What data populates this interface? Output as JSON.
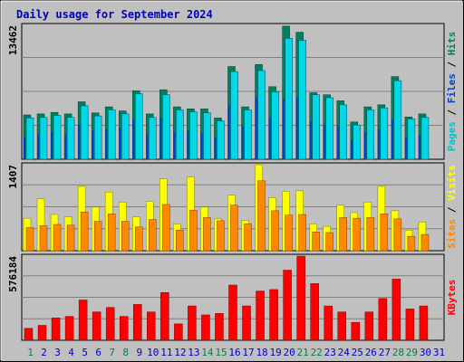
{
  "title": "Daily usage for September 2024",
  "colors": {
    "frame_bg": "#c0c0c0",
    "plot_bg": "#c0c0c0",
    "title": "#0000c0",
    "grid": "#808080",
    "hits_front": "#00d8e8",
    "hits_back": "#008060",
    "files": "#0040c0",
    "pages": "#00c0d0",
    "visits": "#ffff00",
    "sites": "#ff8800",
    "kbytes": "#ff0000",
    "weekend_day": "#008040",
    "weekday": "#0000c0"
  },
  "chart_data": [
    {
      "type": "bar",
      "name": "hits-files-pages",
      "ymax_label": "13462",
      "ylim": [
        0,
        13462
      ],
      "side_labels": [
        "Pages",
        "Files",
        "Hits"
      ],
      "categories": [
        "1",
        "2",
        "3",
        "4",
        "5",
        "6",
        "7",
        "8",
        "9",
        "10",
        "11",
        "12",
        "13",
        "14",
        "15",
        "16",
        "17",
        "18",
        "19",
        "20",
        "21",
        "22",
        "23",
        "24",
        "25",
        "26",
        "27",
        "28",
        "29",
        "30",
        "31"
      ],
      "series": [
        {
          "name": "Hits",
          "values": [
            4400,
            4500,
            4650,
            4500,
            5700,
            4600,
            5200,
            4800,
            6800,
            4500,
            6900,
            5200,
            5000,
            5000,
            4100,
            9200,
            5200,
            9400,
            7200,
            13200,
            12600,
            6600,
            6400,
            5800,
            3700,
            5200,
            5400,
            8200,
            4200,
            4500,
            0
          ]
        },
        {
          "name": "Files",
          "values": [
            4100,
            4150,
            4350,
            4150,
            5300,
            4300,
            4900,
            4500,
            6500,
            4150,
            6400,
            4900,
            4700,
            4600,
            3800,
            8700,
            4900,
            8800,
            6700,
            12000,
            11800,
            6400,
            6100,
            5400,
            3400,
            4900,
            5100,
            7800,
            4000,
            4150,
            0
          ]
        },
        {
          "name": "Pages",
          "values": [
            2200,
            2500,
            2700,
            2400,
            3500,
            2800,
            3000,
            3100,
            4000,
            2400,
            4100,
            2700,
            2800,
            2600,
            2200,
            5300,
            3300,
            6200,
            4200,
            6000,
            6100,
            3800,
            3400,
            3300,
            1900,
            2700,
            3000,
            4000,
            2200,
            2400,
            0
          ]
        }
      ]
    },
    {
      "type": "bar",
      "name": "visits-sites",
      "ymax_label": "1407",
      "ylim": [
        0,
        1407
      ],
      "side_labels": [
        "Sites",
        "Visits"
      ],
      "categories": [
        "1",
        "2",
        "3",
        "4",
        "5",
        "6",
        "7",
        "8",
        "9",
        "10",
        "11",
        "12",
        "13",
        "14",
        "15",
        "16",
        "17",
        "18",
        "19",
        "20",
        "21",
        "22",
        "23",
        "24",
        "25",
        "26",
        "27",
        "28",
        "29",
        "30",
        "31"
      ],
      "series": [
        {
          "name": "Visits",
          "values": [
            520,
            830,
            580,
            540,
            1030,
            700,
            940,
            780,
            540,
            790,
            1150,
            430,
            1180,
            700,
            510,
            890,
            490,
            1400,
            850,
            950,
            960,
            430,
            390,
            730,
            610,
            780,
            1030,
            640,
            330,
            460,
            0
          ]
        },
        {
          "name": "Sites",
          "values": [
            370,
            400,
            420,
            410,
            620,
            470,
            590,
            470,
            380,
            500,
            740,
            330,
            650,
            530,
            480,
            730,
            430,
            1120,
            640,
            570,
            580,
            300,
            290,
            530,
            520,
            530,
            590,
            510,
            230,
            260,
            0
          ]
        }
      ]
    },
    {
      "type": "bar",
      "name": "kbytes",
      "ymax_label": "576184",
      "ylim": [
        0,
        576184
      ],
      "side_labels": [
        "KBytes"
      ],
      "categories": [
        "1",
        "2",
        "3",
        "4",
        "5",
        "6",
        "7",
        "8",
        "9",
        "10",
        "11",
        "12",
        "13",
        "14",
        "15",
        "16",
        "17",
        "18",
        "19",
        "20",
        "21",
        "22",
        "23",
        "24",
        "25",
        "26",
        "27",
        "28",
        "29",
        "30",
        "31"
      ],
      "series": [
        {
          "name": "KBytes",
          "values": [
            80000,
            100000,
            150000,
            160000,
            270000,
            190000,
            220000,
            160000,
            240000,
            190000,
            320000,
            110000,
            230000,
            170000,
            180000,
            370000,
            230000,
            330000,
            340000,
            470000,
            580000,
            380000,
            230000,
            190000,
            120000,
            190000,
            280000,
            410000,
            210000,
            230000,
            0
          ]
        }
      ]
    }
  ],
  "day_labels": [
    "1",
    "2",
    "3",
    "4",
    "5",
    "6",
    "7",
    "8",
    "9",
    "10",
    "11",
    "12",
    "13",
    "14",
    "15",
    "16",
    "17",
    "18",
    "19",
    "20",
    "21",
    "22",
    "23",
    "24",
    "25",
    "26",
    "27",
    "28",
    "29",
    "30",
    "31"
  ],
  "weekend_days": [
    "1",
    "7",
    "8",
    "14",
    "15",
    "21",
    "22",
    "28",
    "29"
  ]
}
